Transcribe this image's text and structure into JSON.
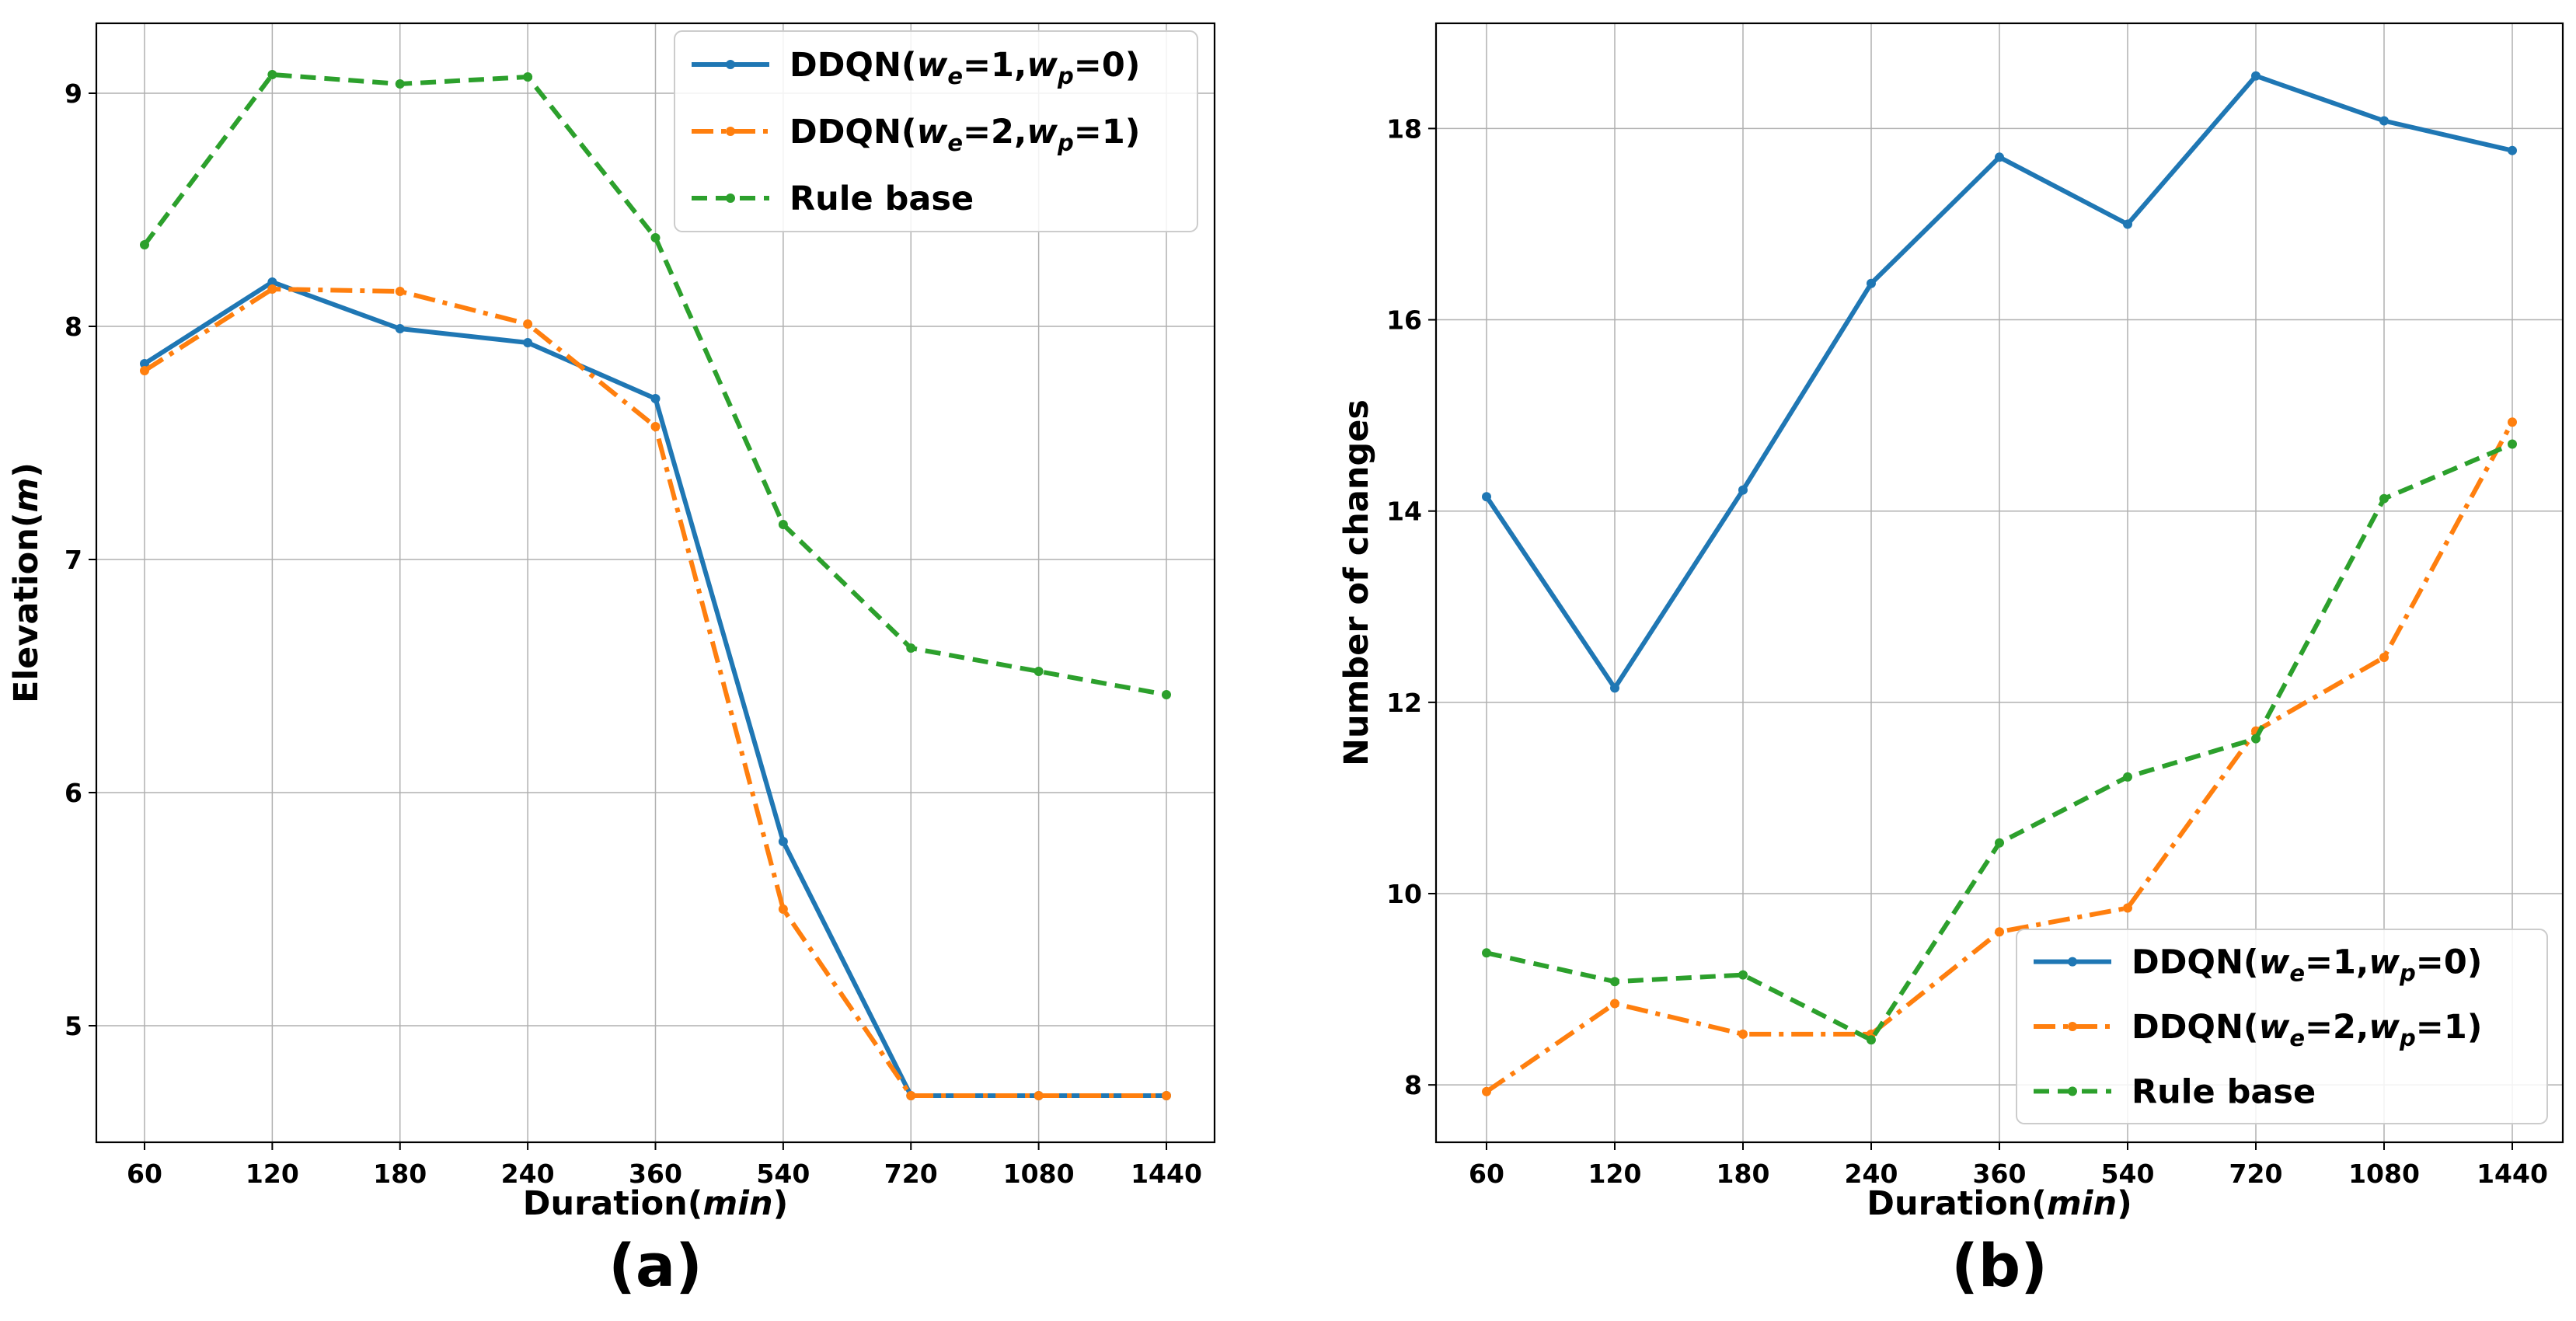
{
  "chart_data": [
    {
      "type": "line",
      "panel_label": "(a)",
      "title": "",
      "xlabel": "Duration(min)",
      "xlabel_parts": [
        "Duration(",
        "min",
        ")"
      ],
      "ylabel": "Elevation(m)",
      "ylabel_parts": [
        "Elevation(",
        "m",
        ")"
      ],
      "categories": [
        "60",
        "120",
        "180",
        "240",
        "360",
        "540",
        "720",
        "1080",
        "1440"
      ],
      "ylim": [
        4.5,
        9.3
      ],
      "yticks": [
        5,
        6,
        7,
        8,
        9
      ],
      "grid": true,
      "legend_position": "top-right",
      "series": [
        {
          "name": "DDQN(we=1,wp=0)",
          "legend_parts": [
            "DDQN(",
            "w",
            "e",
            "=1,",
            "w",
            "p",
            "=0)"
          ],
          "color": "#1f77b4",
          "style": "solid",
          "values": [
            7.84,
            8.19,
            7.99,
            7.93,
            7.69,
            5.79,
            4.7,
            4.7,
            4.7
          ]
        },
        {
          "name": "DDQN(we=2,wp=1)",
          "legend_parts": [
            "DDQN(",
            "w",
            "e",
            "=2,",
            "w",
            "p",
            "=1)"
          ],
          "color": "#ff7f0e",
          "style": "dashdot",
          "values": [
            7.81,
            8.16,
            8.15,
            8.01,
            7.57,
            5.5,
            4.7,
            4.7,
            4.7
          ]
        },
        {
          "name": "Rule base",
          "legend_parts": [
            "Rule base"
          ],
          "color": "#2ca02c",
          "style": "dashed",
          "values": [
            8.35,
            9.08,
            9.04,
            9.07,
            8.38,
            7.15,
            6.62,
            6.52,
            6.42
          ]
        }
      ]
    },
    {
      "type": "line",
      "panel_label": "(b)",
      "title": "",
      "xlabel": "Duration(min)",
      "xlabel_parts": [
        "Duration(",
        "min",
        ")"
      ],
      "ylabel": "Number of changes",
      "categories": [
        "60",
        "120",
        "180",
        "240",
        "360",
        "540",
        "720",
        "1080",
        "1440"
      ],
      "ylim": [
        7.4,
        19.1
      ],
      "yticks": [
        8,
        10,
        12,
        14,
        16,
        18
      ],
      "grid": true,
      "legend_position": "bottom-right",
      "series": [
        {
          "name": "DDQN(we=1,wp=0)",
          "legend_parts": [
            "DDQN(",
            "w",
            "e",
            "=1,",
            "w",
            "p",
            "=0)"
          ],
          "color": "#1f77b4",
          "style": "solid",
          "values": [
            14.15,
            12.15,
            14.22,
            16.38,
            17.7,
            17.0,
            18.55,
            18.08,
            17.77
          ]
        },
        {
          "name": "DDQN(we=2,wp=1)",
          "legend_parts": [
            "DDQN(",
            "w",
            "e",
            "=2,",
            "w",
            "p",
            "=1)"
          ],
          "color": "#ff7f0e",
          "style": "dashdot",
          "values": [
            7.93,
            8.85,
            8.53,
            8.53,
            9.6,
            9.85,
            11.7,
            12.47,
            14.93
          ]
        },
        {
          "name": "Rule base",
          "legend_parts": [
            "Rule base"
          ],
          "color": "#2ca02c",
          "style": "dashed",
          "values": [
            9.38,
            9.08,
            9.15,
            8.47,
            10.53,
            11.22,
            11.62,
            14.13,
            14.7
          ]
        }
      ]
    }
  ]
}
